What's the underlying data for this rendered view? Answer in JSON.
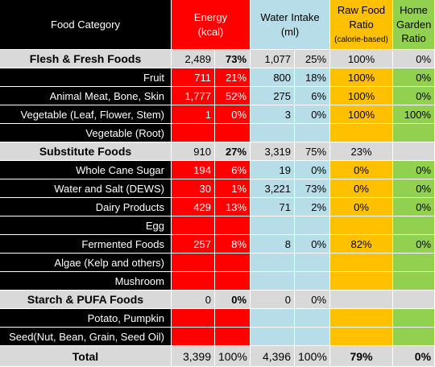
{
  "headers": {
    "category": "Food Category",
    "energy": "Energy\n(kcal)",
    "energy_l1": "Energy",
    "energy_l2": "(kcal)",
    "water_l1": "Water Intake",
    "water_l2": "(ml)",
    "raw_l1": "Raw Food",
    "raw_l2": "Ratio",
    "raw_l3": "(calorie-based)",
    "garden_l1": "Home",
    "garden_l2": "Garden",
    "garden_l3": "Ratio"
  },
  "sections": {
    "flesh": {
      "name": "Flesh & Fresh Foods",
      "energy": "2,489",
      "energy_pct": "73%",
      "water": "1,077",
      "water_pct": "25%",
      "raw": "100%",
      "garden": "0%"
    },
    "substitute": {
      "name": "Substitute Foods",
      "energy": "910",
      "energy_pct": "27%",
      "water": "3,319",
      "water_pct": "75%",
      "raw": "23%",
      "garden": ""
    },
    "starch": {
      "name": "Starch & PUFA Foods",
      "energy": "0",
      "energy_pct": "0%",
      "water": "0",
      "water_pct": "0%",
      "raw": "",
      "garden": ""
    }
  },
  "rows": [
    {
      "name": "Fruit",
      "energy": "711",
      "energy_pct": "21%",
      "water": "800",
      "water_pct": "18%",
      "raw": "100%",
      "garden": "0%"
    },
    {
      "name": "Animal Meat, Bone, Skin",
      "energy": "1,777",
      "energy_pct": "52%",
      "water": "275",
      "water_pct": "6%",
      "raw": "100%",
      "garden": "0%"
    },
    {
      "name": "Vegetable (Leaf, Flower, Stem)",
      "energy": "1",
      "energy_pct": "0%",
      "water": "3",
      "water_pct": "0%",
      "raw": "100%",
      "garden": "100%"
    },
    {
      "name": "Vegetable (Root)",
      "energy": "",
      "energy_pct": "",
      "water": "",
      "water_pct": "",
      "raw": "",
      "garden": ""
    },
    {
      "name": "Whole Cane Sugar",
      "energy": "194",
      "energy_pct": "6%",
      "water": "19",
      "water_pct": "0%",
      "raw": "0%",
      "garden": "0%"
    },
    {
      "name": "Water and Salt (DEWS)",
      "energy": "30",
      "energy_pct": "1%",
      "water": "3,221",
      "water_pct": "73%",
      "raw": "0%",
      "garden": "0%"
    },
    {
      "name": "Dairy Products",
      "energy": "429",
      "energy_pct": "13%",
      "water": "71",
      "water_pct": "2%",
      "raw": "0%",
      "garden": "0%"
    },
    {
      "name": "Egg",
      "energy": "",
      "energy_pct": "",
      "water": "",
      "water_pct": "",
      "raw": "",
      "garden": ""
    },
    {
      "name": "Fermented Foods",
      "energy": "257",
      "energy_pct": "8%",
      "water": "8",
      "water_pct": "0%",
      "raw": "82%",
      "garden": "0%"
    },
    {
      "name": "Algae (Kelp and others)",
      "energy": "",
      "energy_pct": "",
      "water": "",
      "water_pct": "",
      "raw": "",
      "garden": ""
    },
    {
      "name": "Mushroom",
      "energy": "",
      "energy_pct": "",
      "water": "",
      "water_pct": "",
      "raw": "",
      "garden": ""
    },
    {
      "name": "Potato, Pumpkin",
      "energy": "",
      "energy_pct": "",
      "water": "",
      "water_pct": "",
      "raw": "",
      "garden": ""
    },
    {
      "name": "Seed(Nut, Bean, Grain, Seed Oil)",
      "energy": "",
      "energy_pct": "",
      "water": "",
      "water_pct": "",
      "raw": "",
      "garden": ""
    }
  ],
  "total": {
    "name": "Total",
    "energy": "3,399",
    "energy_pct": "100%",
    "water": "4,396",
    "water_pct": "100%",
    "raw": "79%",
    "garden": "0%"
  },
  "colors": {
    "category_bg": "#000000",
    "energy_bg": "#ff0000",
    "water_bg": "#b7dee8",
    "raw_bg": "#ffc000",
    "garden_bg": "#92d050",
    "section_bg": "#d9d9d9"
  }
}
